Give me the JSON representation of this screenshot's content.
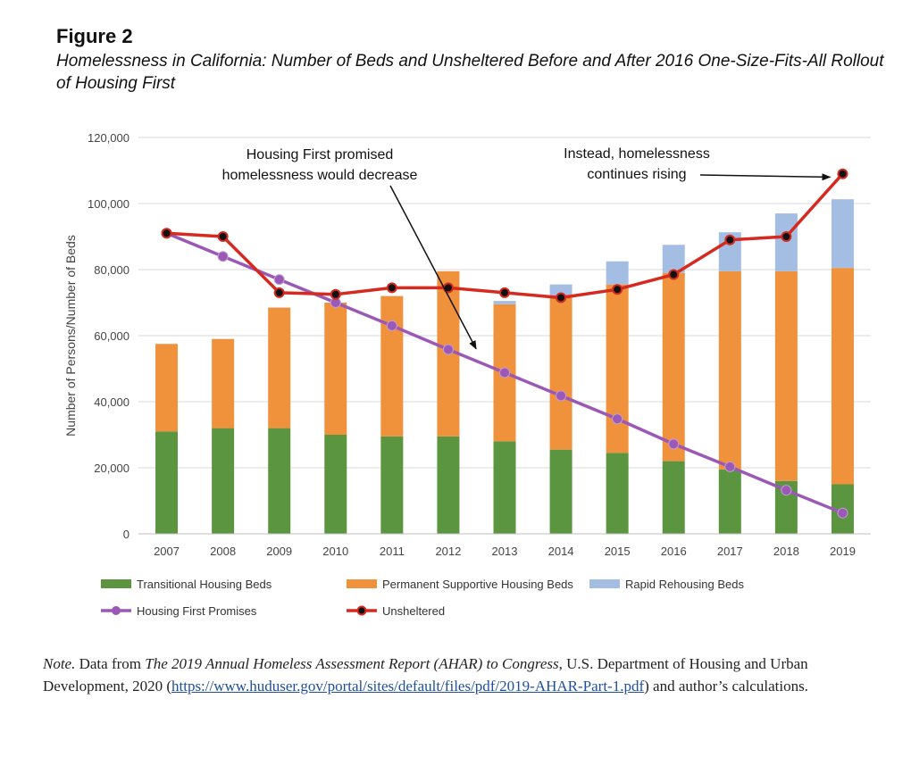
{
  "figure": {
    "label": "Figure 2",
    "title": "Homelessness in California: Number of Beds and Unsheltered Before and After 2016 One-Size-Fits-All Rollout of Housing First"
  },
  "note": {
    "lead": "Note.",
    "text_before": " Data from ",
    "report_title": "The 2019 Annual Homeless Assessment Report (AHAR) to Congress",
    "text_middle": ", U.S. Department of Housing and Urban Development, 2020 (",
    "url": "https://www.huduser.gov/portal/sites/default/files/pdf/2019-AHAR-Part-1.pdf",
    "text_after": ") and author’s calculations."
  },
  "chart_data": {
    "type": "bar",
    "stacked": true,
    "categories": [
      "2007",
      "2008",
      "2009",
      "2010",
      "2011",
      "2012",
      "2013",
      "2014",
      "2015",
      "2016",
      "2017",
      "2018",
      "2019"
    ],
    "ylabel": "Number of Persons/Number of Beds",
    "ylim": [
      0,
      120000
    ],
    "yticks": [
      0,
      20000,
      40000,
      60000,
      80000,
      100000,
      120000
    ],
    "ytick_labels": [
      "0",
      "20,000",
      "40,000",
      "60,000",
      "80,000",
      "100,000",
      "120,000"
    ],
    "grid": true,
    "legend_position": "bottom",
    "series": [
      {
        "name": "Transitional Housing Beds",
        "kind": "bar",
        "color": "#5b9540",
        "values": [
          31000,
          32000,
          32000,
          30000,
          29500,
          29500,
          28000,
          25500,
          24500,
          22000,
          19500,
          16000,
          15000
        ]
      },
      {
        "name": "Permanent Supportive Housing Beds",
        "kind": "bar",
        "color": "#f0913c",
        "values": [
          26500,
          27000,
          36500,
          40000,
          42500,
          50000,
          41500,
          46500,
          51000,
          57000,
          60000,
          63500,
          65500
        ]
      },
      {
        "name": "Rapid Rehousing Beds",
        "kind": "bar",
        "color": "#a3bde3",
        "values": [
          0,
          0,
          0,
          0,
          0,
          0,
          1000,
          3500,
          7000,
          8500,
          11800,
          17500,
          20800
        ]
      },
      {
        "name": "Housing First Promises",
        "kind": "line",
        "color": "#9b59b6",
        "values": [
          91000,
          84000,
          77000,
          70000,
          63000,
          55800,
          48800,
          41800,
          34800,
          27200,
          20300,
          13200,
          6300
        ]
      },
      {
        "name": "Unsheltered",
        "kind": "line",
        "color": "#d42a20",
        "values": [
          91000,
          90000,
          73000,
          72500,
          74500,
          74500,
          73000,
          71500,
          74000,
          78500,
          89000,
          90000,
          109000
        ]
      }
    ],
    "annotations": [
      {
        "text": [
          "Housing First promised",
          "homelessness would decrease"
        ],
        "points_to": {
          "x": "2014",
          "y": 56000
        }
      },
      {
        "text": [
          "Instead, homelessness",
          "continues rising"
        ],
        "points_to": {
          "x": "2019",
          "y": 108000
        }
      }
    ]
  }
}
